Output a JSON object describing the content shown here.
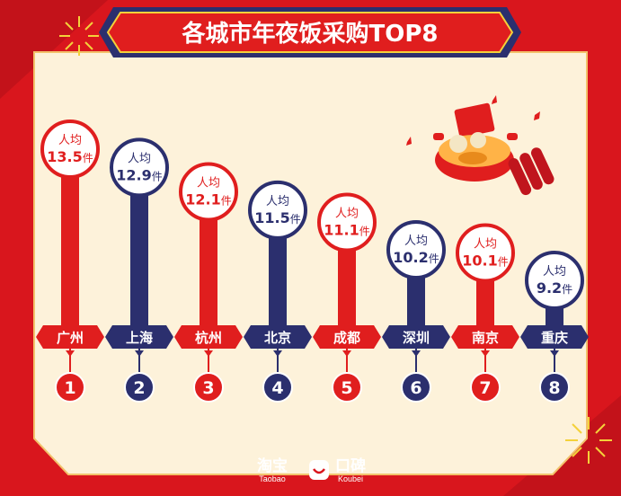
{
  "chart_data": {
    "type": "bar",
    "title": "各城市年夜饭采购TOP8",
    "value_prefix": "人均",
    "unit": "件",
    "categories": [
      "广州",
      "上海",
      "杭州",
      "北京",
      "成都",
      "深圳",
      "南京",
      "重庆"
    ],
    "ranks": [
      "1",
      "2",
      "3",
      "4",
      "5",
      "6",
      "7",
      "8"
    ],
    "values": [
      13.5,
      12.9,
      12.1,
      11.5,
      11.1,
      10.2,
      10.1,
      9.2
    ],
    "series_colors": [
      "#e01e1e",
      "#2b2f6e",
      "#e01e1e",
      "#2b2f6e",
      "#e01e1e",
      "#2b2f6e",
      "#e01e1e",
      "#2b2f6e"
    ]
  },
  "colors": {
    "background": "#d9161d",
    "panel": "#fdf2da",
    "label_bg": "#e01e1e",
    "label_bg_alt": "#2b2f6e",
    "gold": "#f4d13a"
  },
  "footer": {
    "taobao_main": "淘宝",
    "taobao_sub": "Taobao",
    "koubei_main": "口碑",
    "koubei_sub": "Koubei"
  }
}
